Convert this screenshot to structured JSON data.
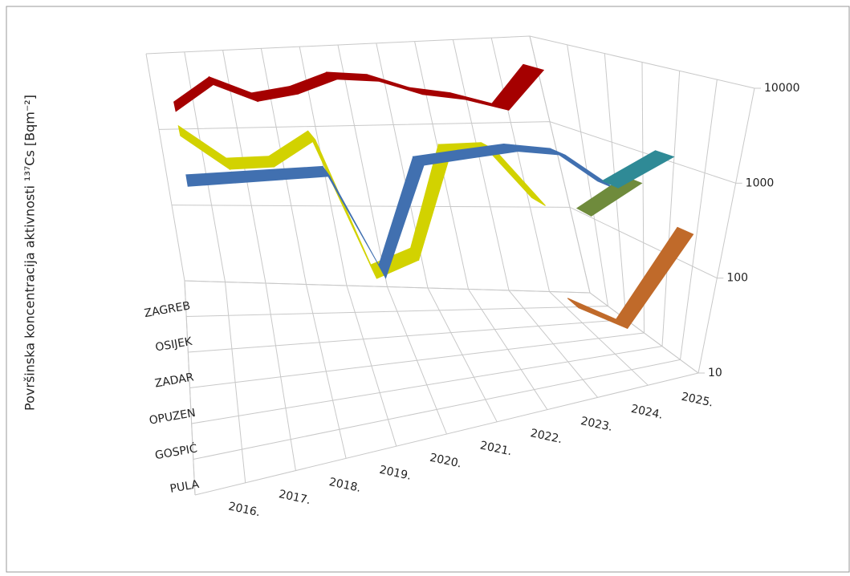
{
  "chart_data": {
    "type": "line",
    "y_label": "Površinska koncentracija aktivnosti ¹³⁷Cs [Bqm⁻²]",
    "categories": [
      "2016.",
      "2017.",
      "2018.",
      "2019.",
      "2020.",
      "2021.",
      "2022.",
      "2023.",
      "2024.",
      "2025."
    ],
    "series": [
      {
        "name": "ZAGREB",
        "color": "#a50000",
        "values": [
          2500,
          5000,
          3000,
          3500,
          5000,
          4500,
          3000,
          2500,
          1800,
          5000
        ]
      },
      {
        "name": "OSIJEK",
        "color": "#d2d200",
        "values": [
          2000,
          800,
          800,
          1500,
          40,
          60,
          900,
          900,
          200,
          null
        ]
      },
      {
        "name": "ZADAR",
        "color": "#4170b0",
        "values": [
          900,
          900,
          900,
          900,
          70,
          1000,
          1100,
          1200,
          1000,
          400
        ]
      },
      {
        "name": "OPUZEN",
        "color": "#6f8b3c",
        "values": [
          null,
          null,
          null,
          null,
          null,
          null,
          null,
          null,
          300,
          600
        ]
      },
      {
        "name": "GOSPIĆ",
        "color": "#2f8a96",
        "values": [
          null,
          null,
          null,
          null,
          null,
          null,
          null,
          null,
          800,
          1500
        ]
      },
      {
        "name": "PULA",
        "color": "#c06a2a",
        "values": [
          null,
          null,
          null,
          null,
          null,
          null,
          null,
          80,
          40,
          300
        ]
      }
    ],
    "ylim": [
      10,
      10000
    ],
    "yticks": [
      10,
      100,
      1000,
      10000
    ],
    "log_scale": true,
    "grid": true
  }
}
